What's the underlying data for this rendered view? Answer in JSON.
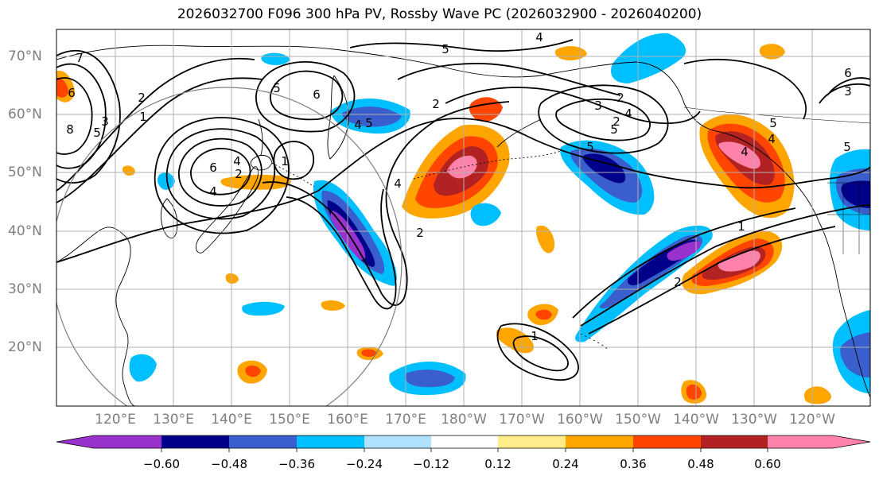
{
  "title": "2026032700 F096 300 hPa PV, Rossby Wave PC (2026032900 - 2026040200)",
  "lat_labels": [
    "70°N",
    "60°N",
    "50°N",
    "40°N",
    "30°N",
    "20°N"
  ],
  "lon_labels": [
    "120°E",
    "130°E",
    "140°E",
    "150°E",
    "160°E",
    "170°E",
    "180°W",
    "170°W",
    "160°W",
    "150°W",
    "140°W",
    "130°W",
    "120°W"
  ],
  "colorbar": {
    "tick_labels": [
      "−0.60",
      "−0.48",
      "−0.36",
      "−0.24",
      "−0.12",
      "0.12",
      "0.24",
      "0.36",
      "0.48",
      "0.60"
    ],
    "colors": [
      "#9932cc",
      "#00008b",
      "#3a5fcd",
      "#00bfff",
      "#b0e2ff",
      "#ffffff",
      "#ffec8b",
      "#ffa500",
      "#ff4500",
      "#b22222",
      "#ff82ab"
    ]
  },
  "pv_contour_labels": [
    "7",
    "6",
    "8",
    "5",
    "3",
    "1",
    "2",
    "5",
    "6",
    "6",
    "4",
    "2",
    "4",
    "1",
    "5",
    "4",
    "2",
    "5",
    "4",
    "2",
    "3",
    "2",
    "4",
    "5",
    "2",
    "5",
    "5",
    "4",
    "1",
    "2",
    "1",
    "5",
    "4",
    "6",
    "3",
    "4"
  ],
  "colors": {
    "axis_label": "#7f7f7f",
    "contour": "#000000",
    "grid": "#b0b0b0"
  }
}
